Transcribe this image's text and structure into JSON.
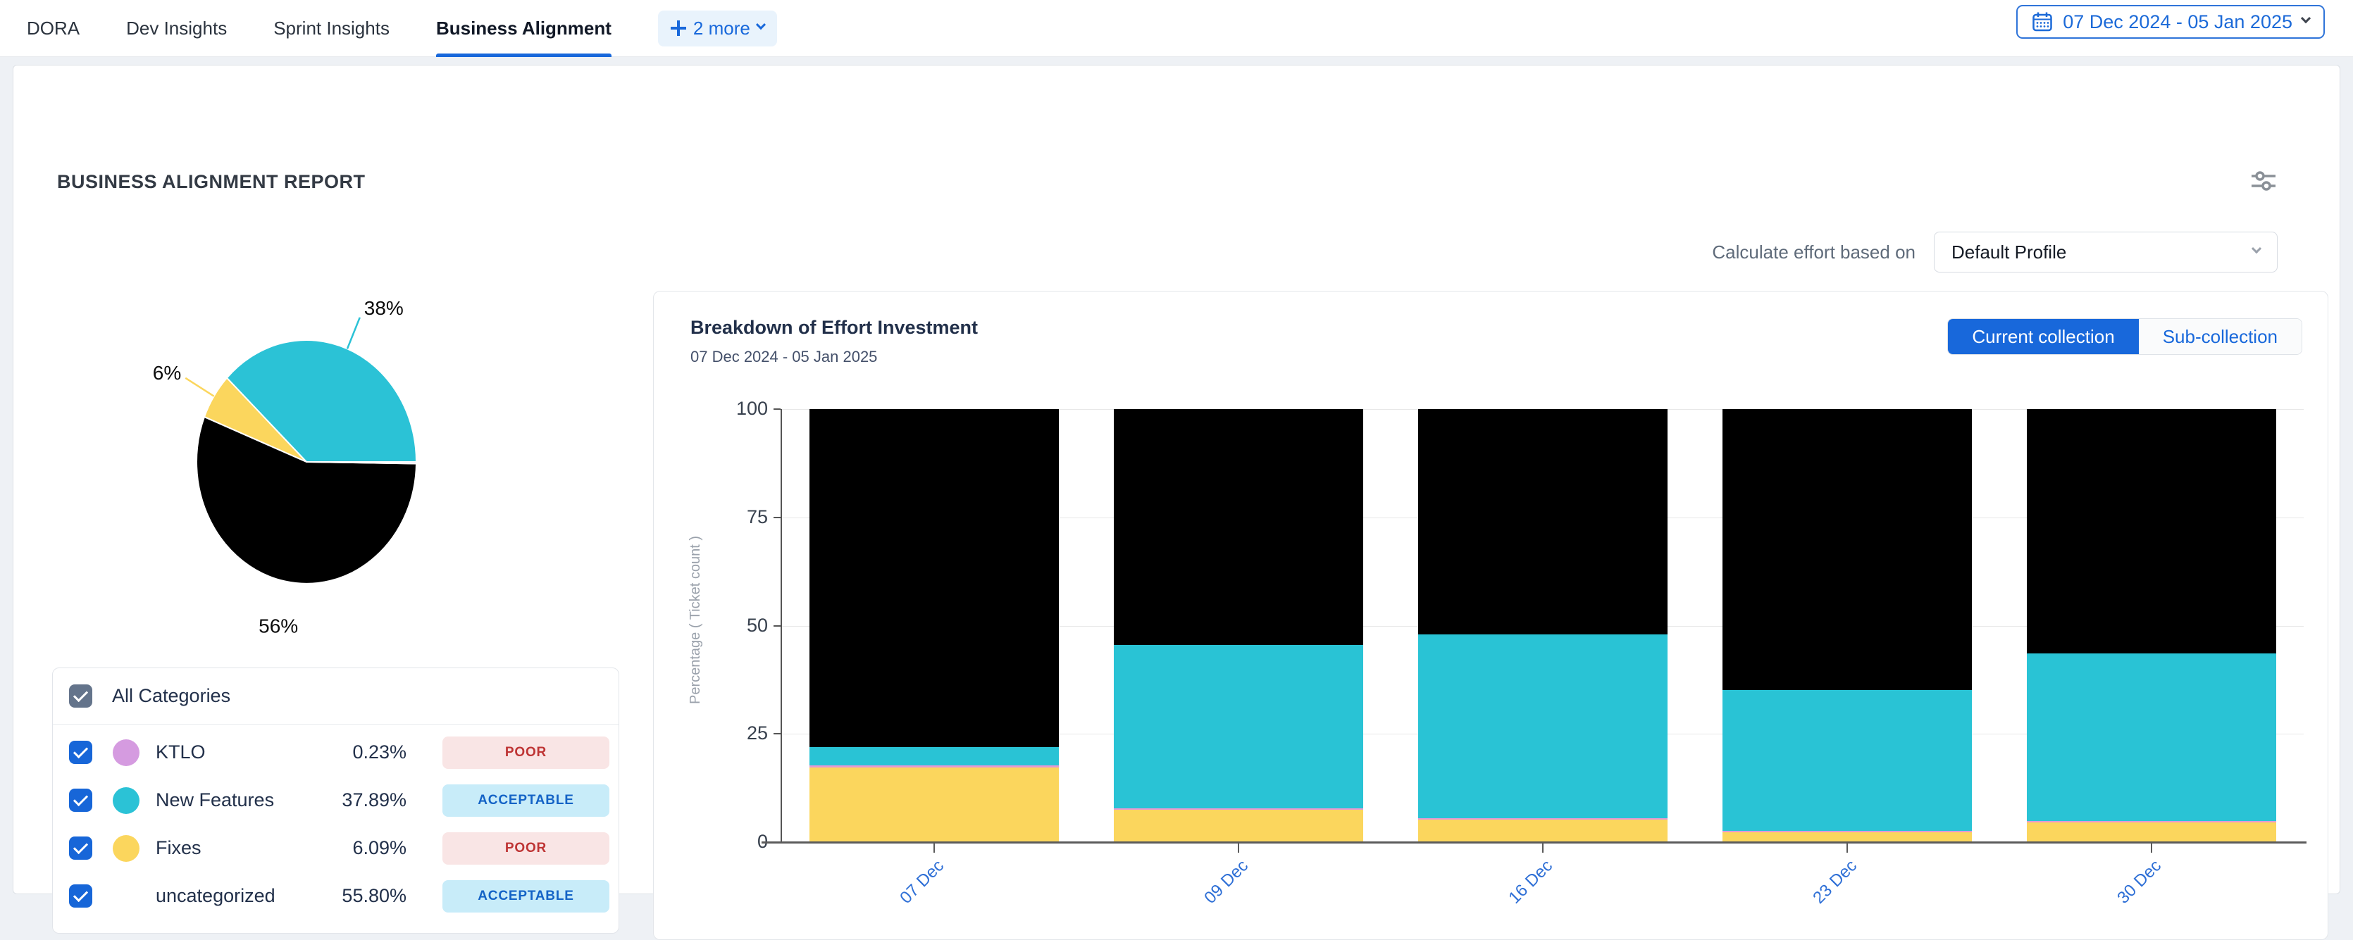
{
  "nav": {
    "tabs": [
      {
        "label": "DORA",
        "active": false
      },
      {
        "label": "Dev Insights",
        "active": false
      },
      {
        "label": "Sprint Insights",
        "active": false
      },
      {
        "label": "Business Alignment",
        "active": true
      }
    ],
    "more_label": "2 more",
    "more_icon": "plus-icon",
    "date_range": "07 Dec 2024 - 05 Jan 2025",
    "date_icon": "calendar-icon"
  },
  "report": {
    "title": "BUSINESS ALIGNMENT REPORT",
    "settings_icon": "sliders-icon",
    "effort_label": "Calculate effort based on",
    "profile_value": "Default Profile"
  },
  "categories_panel": {
    "header": "All Categories",
    "items": [
      {
        "label": "KTLO",
        "value": "0.23%",
        "color": "#D59BE0",
        "status": "POOR",
        "status_type": "poor",
        "checked": true
      },
      {
        "label": "New Features",
        "value": "37.89%",
        "color": "#2BC2D6",
        "status": "ACCEPTABLE",
        "status_type": "acceptable",
        "checked": true
      },
      {
        "label": "Fixes",
        "value": "6.09%",
        "color": "#FBD65D",
        "status": "POOR",
        "status_type": "poor",
        "checked": true
      },
      {
        "label": "uncategorized",
        "value": "55.80%",
        "color": null,
        "status": "ACCEPTABLE",
        "status_type": "acceptable",
        "checked": true
      }
    ]
  },
  "bar_card": {
    "title": "Breakdown of Effort Investment",
    "subtitle": "07 Dec 2024 - 05 Jan 2025",
    "buttons": [
      {
        "label": "Current collection",
        "active": true
      },
      {
        "label": "Sub-collection",
        "active": false
      }
    ]
  },
  "chart_data": [
    {
      "type": "pie",
      "title": "Effort distribution by category",
      "start_angle_deg": 0,
      "direction": "counterclockwise",
      "slices": [
        {
          "name": "New Features",
          "value": 37.89,
          "color": "#2BC2D6",
          "label": "38%",
          "label_anchor": "start",
          "connector": true
        },
        {
          "name": "Fixes",
          "value": 6.09,
          "color": "#FBD65D",
          "label": "6%",
          "label_anchor": "end",
          "connector": true
        },
        {
          "name": "uncategorized",
          "value": 55.8,
          "color": "#000000",
          "label": "56%",
          "label_anchor": "middle",
          "connector": false
        },
        {
          "name": "KTLO",
          "value": 0.23,
          "color": "#D59BE0",
          "label": null,
          "label_anchor": "middle",
          "connector": false
        }
      ]
    },
    {
      "type": "bar",
      "stacked": true,
      "title": "Breakdown of Effort Investment",
      "categories": [
        "07 Dec",
        "09 Dec",
        "16 Dec",
        "23 Dec",
        "30 Dec"
      ],
      "series": [
        {
          "name": "Fixes",
          "color": "#FBD65D",
          "values": [
            17.3,
            7.5,
            5.2,
            2.3,
            4.6
          ]
        },
        {
          "name": "KTLO",
          "color": "#E39AD5",
          "values": [
            0.35,
            0.35,
            0.35,
            0.35,
            0.35
          ]
        },
        {
          "name": "New Features",
          "color": "#29C3D5",
          "values": [
            4.25,
            37.75,
            42.45,
            32.45,
            38.65
          ]
        },
        {
          "name": "uncategorized",
          "color": "#000000",
          "values": [
            78.1,
            54.4,
            52.0,
            64.9,
            56.4
          ]
        }
      ],
      "xlabel": "",
      "ylabel": "Percentage ( Ticket count )",
      "ylim": [
        0,
        100
      ],
      "yticks": [
        0,
        25,
        50,
        75,
        100
      ],
      "grid": true,
      "legend_position": "none"
    }
  ]
}
